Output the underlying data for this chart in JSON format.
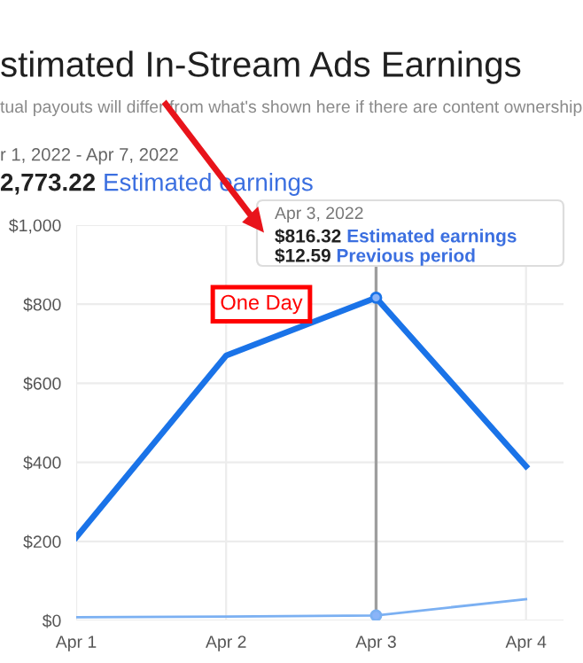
{
  "chart_data": {
    "type": "line",
    "title": "stimated In-Stream Ads Earnings",
    "subtitle": "tual payouts will differ from what's shown here if there are content ownership",
    "x": [
      "2022-04-01",
      "2022-04-02",
      "2022-04-03",
      "2022-04-04"
    ],
    "series": [
      {
        "color": "#1a73e8",
        "values": [
          210,
          670,
          816.32,
          390
        ]
      },
      {
        "color": "#7bb0f2",
        "values": [
          8,
          10,
          12.59,
          54
        ]
      }
    ],
    "xlim": [
      "2022-04-01",
      "2022-04-04T06:00"
    ],
    "xticks": [
      {
        "value": "2022-04-01",
        "label": "Apr 1"
      },
      {
        "value": "2022-04-02",
        "label": "Apr 2"
      },
      {
        "value": "2022-04-03",
        "label": "Apr 3"
      },
      {
        "value": "2022-04-04",
        "label": "Apr 4"
      }
    ],
    "ylim": [
      0,
      1000
    ],
    "yticks": [
      {
        "value": 0,
        "label": "$0"
      },
      {
        "value": 200,
        "label": "$200"
      },
      {
        "value": 400,
        "label": "$400"
      },
      {
        "value": 600,
        "label": "$600"
      },
      {
        "value": 800,
        "label": "$800"
      },
      {
        "value": 1000,
        "label": "$1,000"
      }
    ],
    "grid": true,
    "marker": "none",
    "line_style": "solid",
    "legend": false,
    "ref_lines": [
      {
        "axis": "x",
        "value": "2022-04-03",
        "color": "#9e9e9e"
      }
    ],
    "annotations": [
      "r 1, 2022 - Apr 7, 2022",
      "2,773.22 Estimated earnings",
      "One Day",
      "Apr 3, 2022",
      "$816.32 Estimated earnings",
      "$12.59 Previous period"
    ]
  }
}
